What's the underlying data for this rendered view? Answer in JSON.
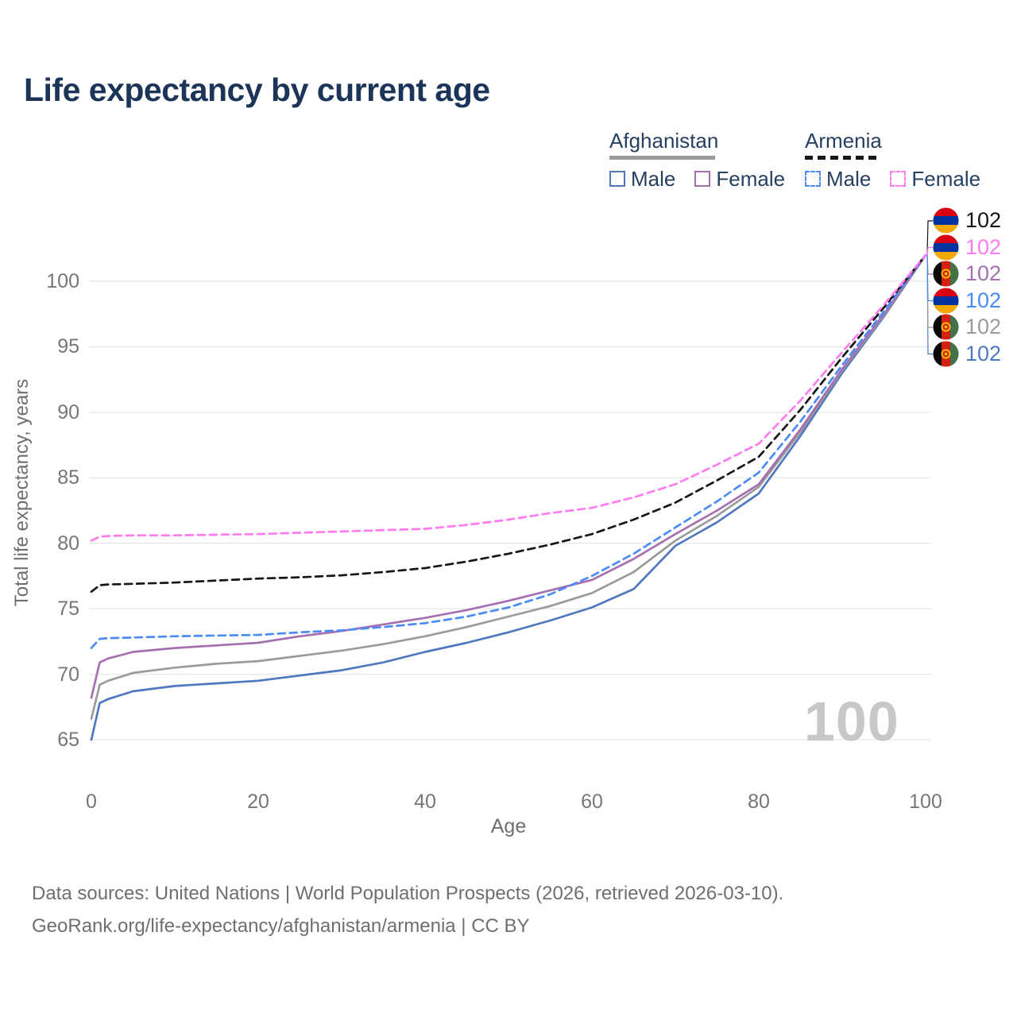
{
  "title": "Life expectancy by current age",
  "watermark": "100",
  "legend": {
    "groups": [
      {
        "country": "Afghanistan",
        "line_style": "solid",
        "underline_color": "#9a9a9a",
        "items": [
          {
            "label": "Male",
            "color": "#4f78bf",
            "dashed": false
          },
          {
            "label": "Female",
            "color": "#a66fb0",
            "dashed": false
          }
        ]
      },
      {
        "country": "Armenia",
        "line_style": "dashed",
        "underline_color": "#161616",
        "items": [
          {
            "label": "Male",
            "color": "#4b8bf5",
            "dashed": true
          },
          {
            "label": "Female",
            "color": "#ff7bef",
            "dashed": true
          }
        ]
      }
    ]
  },
  "footer": {
    "line1": "Data sources: United Nations | World Population Prospects (2026, retrieved 2026-03-10).",
    "line2": "GeoRank.org/life-expectancy/afghanistan/armenia | CC BY"
  },
  "chart_data": {
    "type": "line",
    "title": "Life expectancy by current age",
    "xlabel": "Age",
    "ylabel": "Total life expectancy, years",
    "xlim": [
      0,
      100
    ],
    "ylim": [
      65,
      104
    ],
    "x_ticks": [
      0,
      20,
      40,
      60,
      80,
      100
    ],
    "y_ticks": [
      65,
      70,
      75,
      80,
      85,
      90,
      95,
      100
    ],
    "grid": "horizontal",
    "legend_position": "top-right",
    "x": [
      0,
      1,
      2,
      5,
      10,
      15,
      20,
      25,
      30,
      35,
      40,
      45,
      50,
      55,
      60,
      65,
      70,
      75,
      80,
      85,
      90,
      95,
      100
    ],
    "series": [
      {
        "id": "afghanistan-male",
        "name": "Afghanistan Male",
        "color": "#4f78bf",
        "dashed": false,
        "flag": "afghanistan",
        "end_value": "102",
        "label_row": 5,
        "values": [
          65.0,
          67.8,
          68.1,
          68.7,
          69.1,
          69.3,
          69.5,
          69.9,
          70.3,
          70.9,
          71.7,
          72.4,
          73.2,
          74.1,
          75.1,
          76.5,
          79.8,
          81.6,
          83.8,
          88.2,
          93.0,
          97.3,
          102
        ]
      },
      {
        "id": "afghanistan-both",
        "name": "Afghanistan (both sexes)",
        "color": "#9b9b9b",
        "dashed": false,
        "flag": "afghanistan",
        "end_value": "102",
        "label_row": 4,
        "values": [
          66.6,
          69.2,
          69.5,
          70.1,
          70.5,
          70.8,
          71.0,
          71.4,
          71.8,
          72.3,
          72.9,
          73.6,
          74.4,
          75.2,
          76.2,
          77.8,
          80.2,
          82.1,
          84.3,
          88.5,
          93.2,
          97.4,
          102
        ]
      },
      {
        "id": "afghanistan-female",
        "name": "Afghanistan Female",
        "color": "#a66fb0",
        "dashed": false,
        "flag": "afghanistan",
        "end_value": "102",
        "label_row": 2,
        "values": [
          68.2,
          70.9,
          71.2,
          71.7,
          72.0,
          72.2,
          72.4,
          72.9,
          73.3,
          73.8,
          74.3,
          74.9,
          75.6,
          76.4,
          77.2,
          78.8,
          80.7,
          82.5,
          84.5,
          88.7,
          93.3,
          97.5,
          102
        ]
      },
      {
        "id": "armenia-male",
        "name": "Armenia Male",
        "color": "#4b8bf5",
        "dashed": true,
        "flag": "armenia",
        "end_value": "102",
        "label_row": 3,
        "values": [
          72.0,
          72.7,
          72.75,
          72.8,
          72.9,
          72.95,
          73.0,
          73.2,
          73.35,
          73.6,
          73.9,
          74.4,
          75.1,
          76.1,
          77.5,
          79.2,
          81.2,
          83.2,
          85.4,
          89.3,
          93.6,
          97.7,
          102
        ]
      },
      {
        "id": "armenia-both",
        "name": "Armenia (both sexes)",
        "color": "#161616",
        "dashed": true,
        "flag": "armenia",
        "end_value": "102",
        "label_row": 0,
        "values": [
          76.3,
          76.8,
          76.85,
          76.9,
          77.0,
          77.15,
          77.3,
          77.4,
          77.55,
          77.8,
          78.1,
          78.6,
          79.2,
          79.9,
          80.7,
          81.8,
          83.1,
          84.8,
          86.6,
          90.2,
          94.2,
          98.0,
          102
        ]
      },
      {
        "id": "armenia-female",
        "name": "Armenia Female",
        "color": "#ff7bef",
        "dashed": true,
        "flag": "armenia",
        "end_value": "102",
        "label_row": 1,
        "values": [
          80.2,
          80.5,
          80.55,
          80.6,
          80.6,
          80.65,
          80.7,
          80.8,
          80.9,
          81.0,
          81.1,
          81.4,
          81.8,
          82.3,
          82.7,
          83.5,
          84.5,
          86.0,
          87.6,
          90.9,
          94.6,
          98.2,
          102
        ]
      }
    ]
  }
}
